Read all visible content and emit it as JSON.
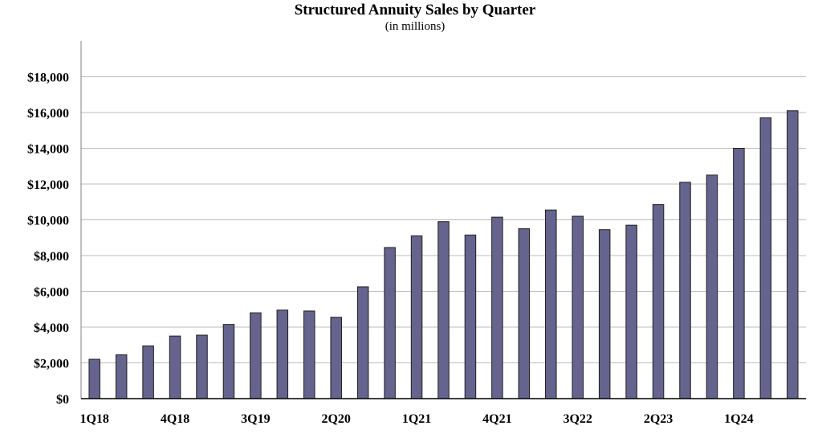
{
  "chart_data": {
    "type": "bar",
    "title": "Structured Annuity Sales by Quarter",
    "subtitle": "(in millions)",
    "xlabel": "",
    "ylabel": "",
    "ylim": [
      0,
      20000
    ],
    "yticks": [
      0,
      2000,
      4000,
      6000,
      8000,
      10000,
      12000,
      14000,
      16000,
      18000
    ],
    "ytick_labels": [
      "$0",
      "$2,000",
      "$4,000",
      "$6,000",
      "$8,000",
      "$10,000",
      "$12,000",
      "$14,000",
      "$16,000",
      "$18,000"
    ],
    "grid": true,
    "categories": [
      "1Q18",
      "2Q18",
      "3Q18",
      "4Q18",
      "1Q19",
      "2Q19",
      "3Q19",
      "4Q19",
      "1Q20",
      "2Q20",
      "3Q20",
      "4Q20",
      "1Q21",
      "2Q21",
      "3Q21",
      "4Q21",
      "1Q22",
      "2Q22",
      "3Q22",
      "4Q22",
      "1Q23",
      "2Q23",
      "3Q23",
      "4Q23",
      "1Q24",
      "2Q24",
      "3Q24"
    ],
    "shown_x_labels": [
      "1Q18",
      "4Q18",
      "3Q19",
      "2Q20",
      "1Q21",
      "4Q21",
      "3Q22",
      "2Q23",
      "1Q24"
    ],
    "values": [
      2200,
      2450,
      2950,
      3500,
      3550,
      4150,
      4800,
      4950,
      4900,
      4550,
      6250,
      8450,
      9100,
      9900,
      9150,
      10150,
      9500,
      10550,
      10200,
      9450,
      9700,
      10850,
      12100,
      12500,
      14000,
      15700,
      16100
    ],
    "bar_color": "#64648e",
    "bar_stroke": "#1e1e1e",
    "grid_color": "#bdbdbd"
  }
}
